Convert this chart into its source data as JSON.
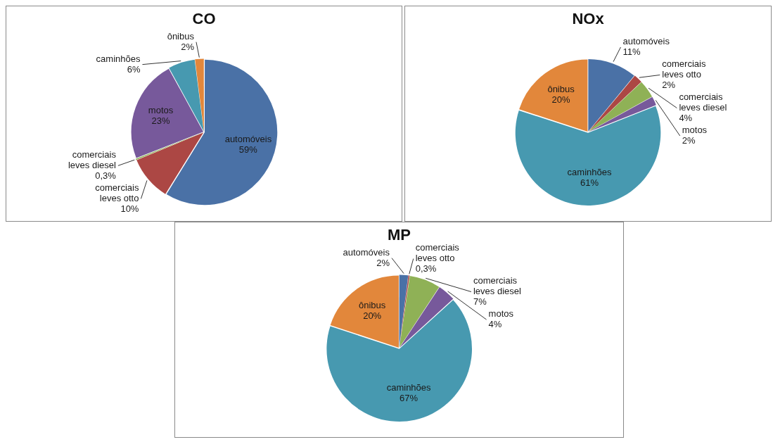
{
  "chart_data": [
    {
      "type": "pie",
      "title": "CO",
      "categories": [
        "automóveis",
        "comerciais leves otto",
        "comerciais leves diesel",
        "motos",
        "caminhões",
        "ônibus"
      ],
      "values": [
        59,
        10,
        0.3,
        23,
        6,
        2
      ],
      "value_labels": [
        "59%",
        "10%",
        "0,3%",
        "23%",
        "6%",
        "2%"
      ],
      "colors": [
        "#4a71a6",
        "#ac4744",
        "#8fb156",
        "#77599b",
        "#4799b0",
        "#e2873b"
      ],
      "legend": false
    },
    {
      "type": "pie",
      "title": "NOx",
      "categories": [
        "automóveis",
        "comerciais leves otto",
        "comerciais leves diesel",
        "motos",
        "caminhões",
        "ônibus"
      ],
      "values": [
        11,
        2,
        4,
        2,
        61,
        20
      ],
      "value_labels": [
        "11%",
        "2%",
        "4%",
        "2%",
        "61%",
        "20%"
      ],
      "colors": [
        "#4a71a6",
        "#ac4744",
        "#8fb156",
        "#77599b",
        "#4799b0",
        "#e2873b"
      ],
      "legend": false
    },
    {
      "type": "pie",
      "title": "MP",
      "categories": [
        "automóveis",
        "comerciais leves otto",
        "comerciais leves diesel",
        "motos",
        "caminhões",
        "ônibus"
      ],
      "values": [
        2,
        0.3,
        7,
        4,
        67,
        20
      ],
      "value_labels": [
        "2%",
        "0,3%",
        "7%",
        "4%",
        "67%",
        "20%"
      ],
      "colors": [
        "#4a71a6",
        "#ac4744",
        "#8fb156",
        "#77599b",
        "#4799b0",
        "#e2873b"
      ],
      "legend": false
    }
  ]
}
